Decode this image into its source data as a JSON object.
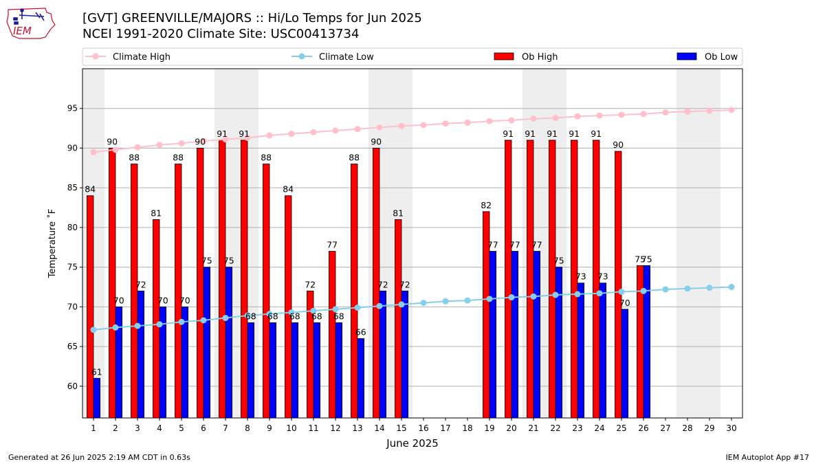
{
  "header": {
    "title_line1": "[GVT] GREENVILLE/MAJORS :: Hi/Lo Temps for Jun 2025",
    "title_line2": "NCEI 1991-2020 Climate Site: USC00413734"
  },
  "logo": {
    "text": "IEM",
    "name": "iem-logo"
  },
  "footer": {
    "left": "Generated at 26 Jun 2025 2:19 AM CDT in 0.63s",
    "right": "IEM Autoplot App #17"
  },
  "colors": {
    "ob_high": "#ff0000",
    "ob_low": "#0000ff",
    "climate_high": "#ffc0cb",
    "climate_low": "#87ceeb",
    "weekend_shade": "#eeeeee",
    "grid": "#b0b0b0"
  },
  "chart_data": {
    "type": "bar",
    "title": "[GVT] GREENVILLE/MAJORS :: Hi/Lo Temps for Jun 2025",
    "subtitle": "NCEI 1991-2020 Climate Site: USC00413734",
    "xlabel": "June 2025",
    "ylabel": "Temperature $^\\circ$F",
    "ylim": [
      56,
      100
    ],
    "xlim": [
      0.5,
      30.5
    ],
    "yticks": [
      60,
      65,
      70,
      75,
      80,
      85,
      90,
      95
    ],
    "categories": [
      1,
      2,
      3,
      4,
      5,
      6,
      7,
      8,
      9,
      10,
      11,
      12,
      13,
      14,
      15,
      16,
      17,
      18,
      19,
      20,
      21,
      22,
      23,
      24,
      25,
      26,
      27,
      28,
      29,
      30
    ],
    "grid": "horizontal",
    "legend_position": "top",
    "legend": [
      "Climate High",
      "Climate Low",
      "Ob High",
      "Ob Low"
    ],
    "weekend_shading": [
      [
        1,
        1
      ],
      [
        7,
        8
      ],
      [
        14,
        15
      ],
      [
        21,
        22
      ],
      [
        28,
        29
      ]
    ],
    "series": [
      {
        "name": "Ob High",
        "kind": "bar",
        "values": [
          84,
          90,
          88,
          81,
          88,
          90,
          91,
          91,
          88,
          84,
          72,
          77,
          88,
          90,
          81,
          null,
          null,
          null,
          82,
          91,
          91,
          91,
          91,
          91,
          89.6,
          75.2,
          null,
          null,
          null,
          null
        ],
        "labels": [
          "84",
          "90",
          "88",
          "81",
          "88",
          "90",
          "91",
          "91",
          "88",
          "84",
          "72",
          "77",
          "88",
          "90",
          "81",
          "",
          "",
          "",
          "82",
          "91",
          "91",
          "91",
          "91",
          "91",
          "90",
          "75",
          "",
          "",
          "",
          ""
        ]
      },
      {
        "name": "Ob Low",
        "kind": "bar",
        "values": [
          61,
          70,
          72,
          70,
          70,
          75,
          75,
          68,
          68,
          68,
          68,
          68,
          66,
          72,
          72,
          null,
          null,
          null,
          77,
          77,
          77,
          75,
          73,
          73,
          69.7,
          75.2,
          null,
          null,
          null,
          null
        ],
        "labels": [
          "61",
          "70",
          "72",
          "70",
          "70",
          "75",
          "75",
          "68",
          "68",
          "68",
          "68",
          "68",
          "66",
          "72",
          "72",
          "",
          "",
          "",
          "77",
          "77",
          "77",
          "75",
          "73",
          "73",
          "70",
          "75",
          "",
          "",
          "",
          ""
        ]
      },
      {
        "name": "Climate High",
        "kind": "line",
        "values": [
          89.5,
          89.8,
          90.1,
          90.4,
          90.6,
          90.9,
          91.1,
          91.3,
          91.6,
          91.8,
          92.0,
          92.2,
          92.4,
          92.6,
          92.8,
          92.9,
          93.1,
          93.2,
          93.4,
          93.5,
          93.7,
          93.8,
          94.0,
          94.1,
          94.2,
          94.3,
          94.5,
          94.6,
          94.7,
          94.8
        ]
      },
      {
        "name": "Climate Low",
        "kind": "line",
        "values": [
          67.1,
          67.4,
          67.6,
          67.8,
          68.1,
          68.3,
          68.6,
          68.9,
          69.1,
          69.3,
          69.5,
          69.7,
          69.9,
          70.1,
          70.3,
          70.5,
          70.7,
          70.8,
          71.0,
          71.2,
          71.3,
          71.5,
          71.6,
          71.7,
          71.9,
          72.0,
          72.2,
          72.3,
          72.4,
          72.5
        ]
      }
    ]
  }
}
